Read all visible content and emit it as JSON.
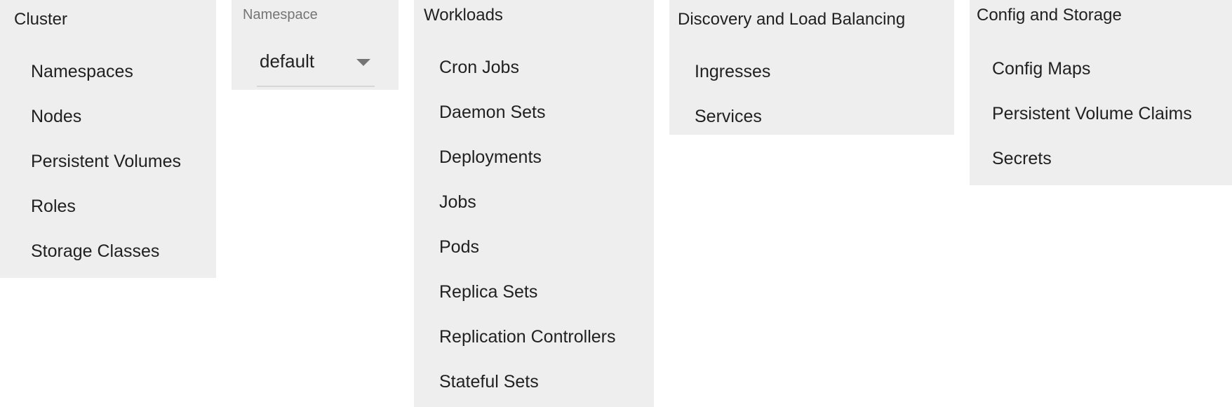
{
  "cluster": {
    "title": "Cluster",
    "items": [
      "Namespaces",
      "Nodes",
      "Persistent Volumes",
      "Roles",
      "Storage Classes"
    ]
  },
  "namespace": {
    "label": "Namespace",
    "selected": "default",
    "caret_icon": "chevron-down-icon"
  },
  "workloads": {
    "title": "Workloads",
    "items": [
      "Cron Jobs",
      "Daemon Sets",
      "Deployments",
      "Jobs",
      "Pods",
      "Replica Sets",
      "Replication Controllers",
      "Stateful Sets"
    ]
  },
  "discovery": {
    "title": "Discovery and Load Balancing",
    "items": [
      "Ingresses",
      "Services"
    ]
  },
  "config": {
    "title": "Config and Storage",
    "items": [
      "Config Maps",
      "Persistent Volume Claims",
      "Secrets"
    ]
  }
}
